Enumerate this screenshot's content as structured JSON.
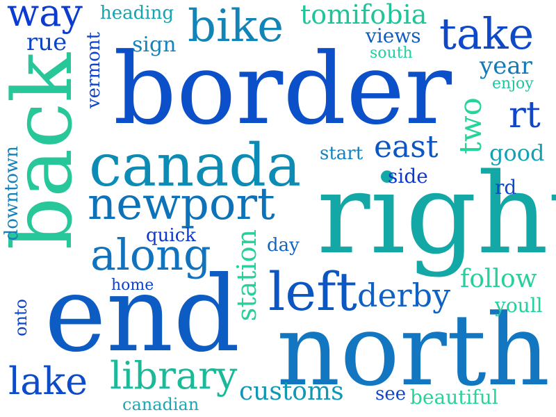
{
  "words": [
    {
      "text": "border",
      "color": "#0b50c8"
    },
    {
      "text": "right",
      "color": "#13a7a6"
    },
    {
      "text": "end",
      "color": "#0d5cc4"
    },
    {
      "text": "north",
      "color": "#1276c0"
    },
    {
      "text": "back",
      "color": "#27c79a"
    },
    {
      "text": "canada",
      "color": "#0c8cb5"
    },
    {
      "text": "newport",
      "color": "#0e72b8"
    },
    {
      "text": "bike",
      "color": "#1284b7"
    },
    {
      "text": "take",
      "color": "#1049c8"
    },
    {
      "text": "way",
      "color": "#0b3bd0"
    },
    {
      "text": "left",
      "color": "#0b56c3"
    },
    {
      "text": "along",
      "color": "#1173bd"
    },
    {
      "text": "library",
      "color": "#1cb999"
    },
    {
      "text": "lake",
      "color": "#0d4bc9"
    },
    {
      "text": "derby",
      "color": "#0f61c4"
    },
    {
      "text": "two",
      "color": "#24d49a"
    },
    {
      "text": "east",
      "color": "#0c56c4"
    },
    {
      "text": "rt",
      "color": "#1246c8"
    },
    {
      "text": "tomifobia",
      "color": "#1fc498"
    },
    {
      "text": "customs",
      "color": "#1197b4"
    },
    {
      "text": "station",
      "color": "#27cf9b"
    },
    {
      "text": "follow",
      "color": "#26cf9c"
    },
    {
      "text": "year",
      "color": "#127ab8"
    },
    {
      "text": "good",
      "color": "#11a1b2"
    },
    {
      "text": "heading",
      "color": "#14a5ae"
    },
    {
      "text": "views",
      "color": "#0f5dc2"
    },
    {
      "text": "south",
      "color": "#24cf9e"
    },
    {
      "text": "enjoy",
      "color": "#20c49f"
    },
    {
      "text": "sign",
      "color": "#1483bd"
    },
    {
      "text": "rue",
      "color": "#0c45c7"
    },
    {
      "text": "vermont",
      "color": "#0d44ca"
    },
    {
      "text": "start",
      "color": "#1682bd"
    },
    {
      "text": "side",
      "color": "#0d39cd"
    },
    {
      "text": "rd",
      "color": "#0e49c8"
    },
    {
      "text": "downtown",
      "color": "#1580b9"
    },
    {
      "text": "quick",
      "color": "#0b38cf"
    },
    {
      "text": "day",
      "color": "#1164c3"
    },
    {
      "text": "home",
      "color": "#0e42cb"
    },
    {
      "text": "youll",
      "color": "#22cf9e"
    },
    {
      "text": "onto",
      "color": "#0e43ca"
    },
    {
      "text": "see",
      "color": "#0f46c9"
    },
    {
      "text": "beautiful",
      "color": "#25d39b"
    },
    {
      "text": "canadian",
      "color": "#1fa6b1"
    }
  ]
}
